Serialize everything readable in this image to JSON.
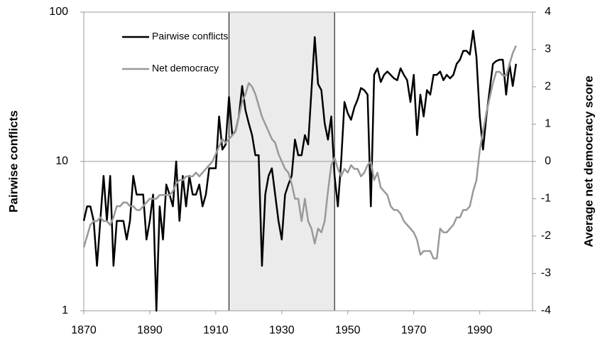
{
  "chart_data": {
    "type": "line",
    "x": [
      1870,
      1871,
      1872,
      1873,
      1874,
      1875,
      1876,
      1877,
      1878,
      1879,
      1880,
      1881,
      1882,
      1883,
      1884,
      1885,
      1886,
      1887,
      1888,
      1889,
      1890,
      1891,
      1892,
      1893,
      1894,
      1895,
      1896,
      1897,
      1898,
      1899,
      1900,
      1901,
      1902,
      1903,
      1904,
      1905,
      1906,
      1907,
      1908,
      1909,
      1910,
      1911,
      1912,
      1913,
      1914,
      1915,
      1916,
      1917,
      1918,
      1919,
      1920,
      1921,
      1922,
      1923,
      1924,
      1925,
      1926,
      1927,
      1928,
      1929,
      1930,
      1931,
      1932,
      1933,
      1934,
      1935,
      1936,
      1937,
      1938,
      1939,
      1940,
      1941,
      1942,
      1943,
      1944,
      1945,
      1946,
      1947,
      1948,
      1949,
      1950,
      1951,
      1952,
      1953,
      1954,
      1955,
      1956,
      1957,
      1958,
      1959,
      1960,
      1961,
      1962,
      1963,
      1964,
      1965,
      1966,
      1967,
      1968,
      1969,
      1970,
      1971,
      1972,
      1973,
      1974,
      1975,
      1976,
      1977,
      1978,
      1979,
      1980,
      1981,
      1982,
      1983,
      1984,
      1985,
      1986,
      1987,
      1988,
      1989,
      1990,
      1991,
      1992,
      1993,
      1994,
      1995,
      1996,
      1997,
      1998,
      1999,
      2000,
      2001
    ],
    "series": [
      {
        "name": "Pairwise conflicts",
        "color": "#000000",
        "axis": "y",
        "values": [
          4,
          5,
          5,
          4,
          2,
          4,
          8,
          4,
          8,
          2,
          4,
          4,
          4,
          3,
          4,
          8,
          6,
          6,
          6,
          3,
          4,
          6,
          1,
          5,
          3,
          7,
          6,
          5,
          10,
          4,
          8,
          5,
          8,
          6,
          6,
          7,
          5,
          6,
          9,
          9,
          9,
          20,
          12,
          13,
          27,
          15,
          16,
          20,
          32,
          22,
          18,
          15,
          11,
          11,
          2,
          6,
          8,
          9,
          6,
          4,
          3,
          6,
          7,
          8,
          14,
          11,
          11,
          15,
          13,
          30,
          68,
          33,
          30,
          18,
          14,
          20,
          8,
          5,
          10,
          25,
          21,
          19,
          23,
          26,
          31,
          30,
          28,
          5,
          38,
          42,
          34,
          38,
          40,
          38,
          36,
          35,
          42,
          38,
          35,
          25,
          38,
          15,
          28,
          20,
          30,
          28,
          38,
          38,
          40,
          35,
          38,
          36,
          38,
          45,
          48,
          55,
          55,
          52,
          75,
          50,
          20,
          12,
          20,
          30,
          45,
          47,
          48,
          48,
          28,
          45,
          32,
          45
        ]
      },
      {
        "name": "Net democracy",
        "color": "#999999",
        "axis": "y2",
        "values": [
          -2.3,
          -2.0,
          -1.7,
          -1.6,
          -1.6,
          -1.5,
          -1.6,
          -1.6,
          -1.7,
          -1.5,
          -1.2,
          -1.2,
          -1.1,
          -1.1,
          -1.2,
          -1.2,
          -1.3,
          -1.3,
          -1.2,
          -1.1,
          -1.0,
          -1.0,
          -1.0,
          -0.9,
          -0.9,
          -0.9,
          -0.9,
          -0.8,
          -0.6,
          -0.5,
          -0.5,
          -0.4,
          -0.4,
          -0.4,
          -0.3,
          -0.4,
          -0.3,
          -0.2,
          -0.1,
          0.0,
          0.2,
          0.4,
          0.6,
          0.5,
          0.6,
          0.7,
          0.8,
          1.2,
          1.6,
          1.8,
          2.1,
          2.0,
          1.8,
          1.5,
          1.2,
          1.0,
          0.8,
          0.6,
          0.5,
          0.2,
          0.0,
          -0.2,
          -0.3,
          -0.6,
          -1.0,
          -1.0,
          -1.6,
          -1.0,
          -1.6,
          -1.8,
          -2.2,
          -1.8,
          -1.9,
          -1.6,
          -0.8,
          -0.1,
          0.1,
          -0.2,
          -0.4,
          -0.2,
          -0.3,
          -0.1,
          -0.2,
          -0.2,
          -0.4,
          -0.3,
          -0.1,
          0.0,
          -0.5,
          -0.3,
          -0.7,
          -0.8,
          -0.9,
          -1.2,
          -1.3,
          -1.3,
          -1.4,
          -1.6,
          -1.7,
          -1.8,
          -1.9,
          -2.1,
          -2.5,
          -2.4,
          -2.4,
          -2.4,
          -2.6,
          -2.6,
          -1.8,
          -1.9,
          -1.9,
          -1.8,
          -1.7,
          -1.5,
          -1.5,
          -1.3,
          -1.3,
          -1.2,
          -0.8,
          -0.5,
          0.3,
          0.8,
          1.3,
          1.7,
          2.1,
          2.4,
          2.4,
          2.3,
          2.3,
          2.6,
          2.9,
          3.1
        ]
      }
    ],
    "y_label": "Pairwise conflicts",
    "y2_label": "Average net democracy score",
    "xlim": [
      1870,
      2006
    ],
    "xticks": [
      1870,
      1890,
      1910,
      1930,
      1950,
      1970,
      1990
    ],
    "ylim": [
      1,
      100
    ],
    "yticks": [
      1,
      10,
      100
    ],
    "y_scale": "log",
    "y2lim": [
      -4,
      4
    ],
    "y2ticks": [
      -4,
      -3,
      -2,
      -1,
      0,
      1,
      2,
      3,
      4
    ],
    "shade": [
      1914,
      1946
    ],
    "grid": true,
    "legend": "upper left"
  }
}
